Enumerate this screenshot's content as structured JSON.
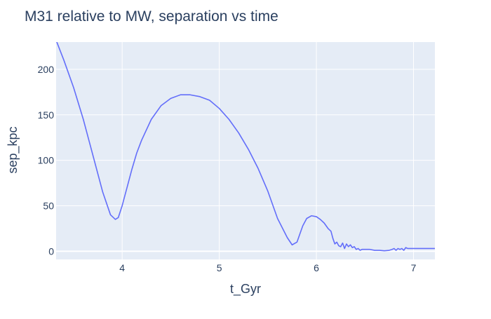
{
  "colors": {
    "plot_bg": "#E5ECF6",
    "grid": "#FFFFFF",
    "line": "#636EFA",
    "title": "#2A3F5F",
    "tick": "#2A3F5F"
  },
  "chart_data": {
    "type": "line",
    "title": "M31 relative to MW, separation vs time",
    "xlabel": "t_Gyr",
    "ylabel": "sep_kpc",
    "xlim": [
      3.32,
      7.22
    ],
    "ylim": [
      -9,
      230
    ],
    "xticks": [
      4,
      5,
      6,
      7
    ],
    "yticks": [
      0,
      50,
      100,
      150,
      200
    ],
    "grid": true,
    "legend": "none",
    "series": [
      {
        "x": [
          3.32,
          3.4,
          3.5,
          3.6,
          3.7,
          3.8,
          3.88,
          3.93,
          3.96,
          4.0,
          4.05,
          4.1,
          4.15,
          4.2,
          4.3,
          4.4,
          4.5,
          4.6,
          4.7,
          4.8,
          4.9,
          5.0,
          5.1,
          5.2,
          5.3,
          5.4,
          5.5,
          5.6,
          5.7,
          5.75,
          5.8,
          5.84,
          5.86,
          5.9,
          5.95,
          6.0,
          6.04,
          6.08,
          6.12,
          6.15,
          6.17,
          6.19,
          6.21,
          6.23,
          6.25,
          6.27,
          6.29,
          6.31,
          6.33,
          6.35,
          6.37,
          6.39,
          6.41,
          6.43,
          6.45,
          6.47,
          6.49,
          6.51,
          6.55,
          6.6,
          6.65,
          6.7,
          6.75,
          6.78,
          6.8,
          6.82,
          6.84,
          6.86,
          6.88,
          6.9,
          6.92,
          6.94,
          6.96,
          7.0,
          7.05,
          7.1,
          7.15,
          7.22
        ],
        "y": [
          232,
          210,
          180,
          145,
          105,
          65,
          40,
          35,
          37,
          50,
          70,
          90,
          108,
          122,
          145,
          160,
          168,
          172,
          172,
          170,
          166,
          157,
          145,
          130,
          112,
          91,
          66,
          36,
          15,
          7,
          10,
          22,
          28,
          36,
          39,
          38,
          35,
          31,
          25,
          22,
          14,
          8,
          10,
          6,
          5,
          9,
          3,
          8,
          5,
          7,
          4,
          5,
          2,
          3,
          1,
          2,
          2,
          2,
          2,
          1,
          1,
          0.5,
          1,
          2,
          3,
          1,
          3,
          2,
          3,
          1,
          4,
          3,
          3,
          3,
          3,
          3,
          3,
          3
        ]
      }
    ]
  }
}
